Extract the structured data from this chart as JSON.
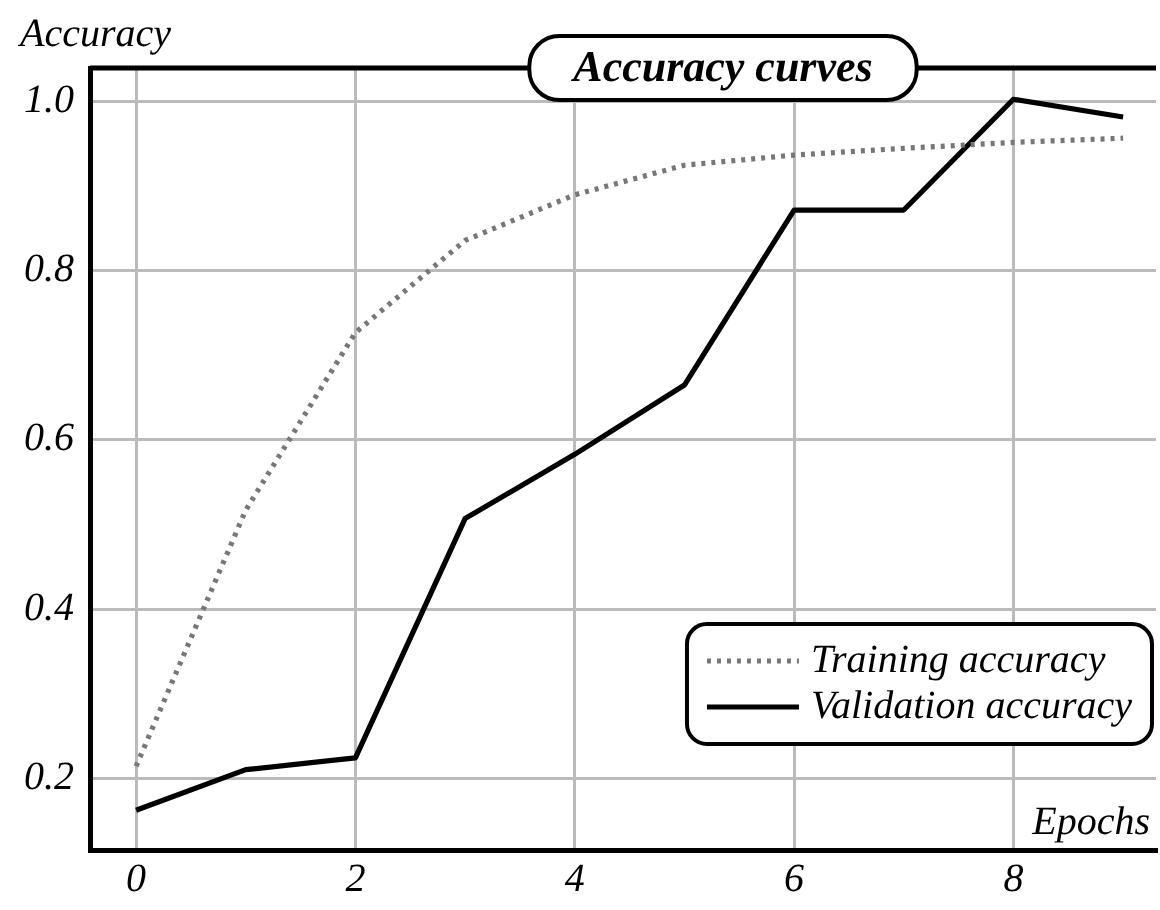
{
  "chart_data": {
    "type": "line",
    "title": "Accuracy curves",
    "xlabel": "Epochs",
    "ylabel": "Accuracy",
    "x": [
      0,
      1,
      2,
      3,
      4,
      5,
      6,
      7,
      8,
      9
    ],
    "series": [
      {
        "name": "Training accuracy",
        "color": "#777777",
        "line_style": "dotted",
        "values": [
          0.214,
          0.517,
          0.727,
          0.836,
          0.89,
          0.925,
          0.937,
          0.945,
          0.952,
          0.957
        ]
      },
      {
        "name": "Validation accuracy",
        "color": "#000000",
        "line_style": "solid",
        "values": [
          0.162,
          0.21,
          0.224,
          0.507,
          0.583,
          0.665,
          0.872,
          0.872,
          1.003,
          0.982
        ]
      }
    ],
    "xlim": [
      -0.42,
      9.3
    ],
    "xticks": [
      0,
      2,
      4,
      6,
      8
    ],
    "ylim": [
      0.115,
      1.04
    ],
    "yticks": [
      {
        "value": 0.2,
        "label": "0.2"
      },
      {
        "value": 0.4,
        "label": "0.4"
      },
      {
        "value": 0.6,
        "label": "0.6"
      },
      {
        "value": 0.8,
        "label": "0.8"
      },
      {
        "value": 1.0,
        "label": "1.0"
      }
    ],
    "grid": true,
    "legend": "bottom right",
    "marker": "none"
  }
}
